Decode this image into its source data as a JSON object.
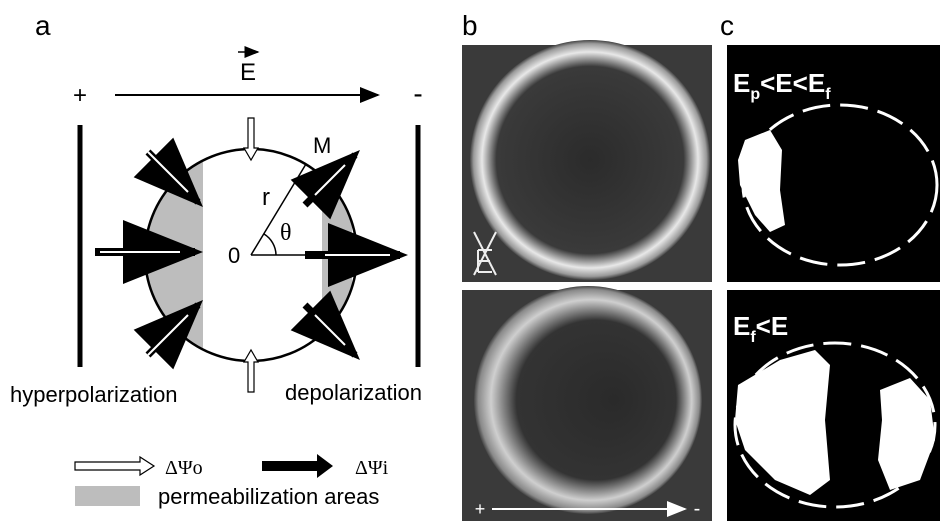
{
  "panels": {
    "a": {
      "label": "a",
      "field": "E",
      "plus": "+",
      "minus": "-",
      "point": "M",
      "radius": "r",
      "angle": "θ",
      "origin": "0",
      "left_label": "hyperpolarization",
      "right_label": "depolarization",
      "legend": {
        "outer": "ΔΨo",
        "inner": "ΔΨi",
        "area": "permeabilization areas"
      }
    },
    "b": {
      "label": "b",
      "plus": "+",
      "minus": "-"
    },
    "c": {
      "label": "c",
      "top": [
        "E",
        "p",
        "<E<E",
        "f"
      ],
      "bottom": [
        "E",
        "f",
        "<E"
      ]
    }
  }
}
